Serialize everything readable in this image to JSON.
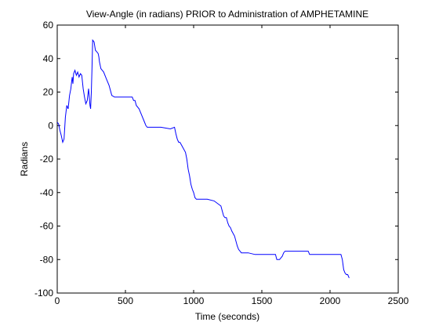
{
  "chart_data": {
    "type": "line",
    "title": "View-Angle (in radians) PRIOR to Administration of AMPHETAMINE",
    "xlabel": "Time (seconds)",
    "ylabel": "Radians",
    "xlim": [
      0,
      2500
    ],
    "ylim": [
      -100,
      60
    ],
    "xticks": [
      0,
      500,
      1000,
      1500,
      2000,
      2500
    ],
    "yticks": [
      -100,
      -80,
      -60,
      -40,
      -20,
      0,
      20,
      40,
      60
    ],
    "grid": false,
    "line_color": "#0000ff",
    "series": [
      {
        "x": [
          0,
          10,
          20,
          30,
          40,
          50,
          60,
          70,
          80,
          90,
          100,
          105,
          110,
          115,
          120,
          130,
          140,
          150,
          160,
          170,
          180,
          190,
          200,
          210,
          220,
          230,
          240,
          245,
          250,
          255,
          260,
          270,
          280,
          290,
          300,
          305,
          310,
          320,
          330,
          340,
          360,
          380,
          400,
          420,
          430,
          450,
          480,
          520,
          550,
          560,
          570,
          580,
          600,
          620,
          640,
          650,
          660,
          700,
          760,
          830,
          860,
          870,
          880,
          890,
          900,
          920,
          940,
          950,
          960,
          970,
          980,
          990,
          1000,
          1010,
          1020,
          1050,
          1100,
          1150,
          1200,
          1210,
          1220,
          1230,
          1240,
          1250,
          1260,
          1270,
          1280,
          1300,
          1320,
          1330,
          1340,
          1350,
          1360,
          1380,
          1400,
          1450,
          1500,
          1550,
          1600,
          1610,
          1620,
          1630,
          1640,
          1650,
          1660,
          1670,
          1680,
          1700,
          1750,
          1800,
          1840,
          1850,
          1860,
          1900,
          1950,
          2000,
          2050,
          2080,
          2090,
          2100,
          2110,
          2120,
          2130,
          2140
        ],
        "y": [
          2,
          1,
          -3,
          -6,
          -10,
          -8,
          5,
          12,
          10,
          18,
          22,
          26,
          29,
          25,
          31,
          33,
          30,
          32,
          29,
          31,
          30,
          22,
          17,
          13,
          15,
          22,
          12,
          10,
          20,
          35,
          51,
          50,
          45,
          44,
          43,
          41,
          38,
          34,
          33,
          32,
          28,
          24,
          18,
          17,
          17,
          17,
          17,
          17,
          17,
          15,
          15,
          12,
          10,
          6,
          2,
          0,
          -1,
          -1,
          -1,
          -2,
          -1,
          -5,
          -8,
          -10,
          -10,
          -13,
          -16,
          -20,
          -26,
          -30,
          -35,
          -38,
          -40,
          -43,
          -44,
          -44,
          -44,
          -45,
          -48,
          -51,
          -54,
          -55,
          -55,
          -58,
          -60,
          -61,
          -63,
          -66,
          -72,
          -74,
          -75,
          -76,
          -76,
          -76,
          -76,
          -77,
          -77,
          -77,
          -77,
          -80,
          -80,
          -80,
          -79,
          -78,
          -76,
          -75,
          -75,
          -75,
          -75,
          -75,
          -75,
          -77,
          -77,
          -77,
          -77,
          -77,
          -77,
          -77,
          -80,
          -86,
          -88,
          -89,
          -89,
          -91
        ]
      }
    ]
  }
}
